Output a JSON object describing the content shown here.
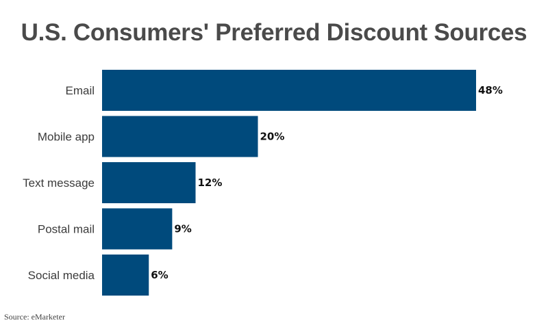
{
  "chart_data": {
    "type": "bar",
    "orientation": "horizontal",
    "title": "U.S. Consumers' Preferred Discount Sources",
    "categories": [
      "Email",
      "Mobile app",
      "Text message",
      "Postal mail",
      "Social media"
    ],
    "values": [
      48,
      20,
      12,
      9,
      6
    ],
    "value_labels": [
      "48%",
      "20%",
      "12%",
      "9%",
      "6%"
    ],
    "unit": "%",
    "xlim": [
      0,
      48
    ],
    "grid": false,
    "legend": "none",
    "bar_color": "#004a7c"
  },
  "source": "Source: eMarketer"
}
